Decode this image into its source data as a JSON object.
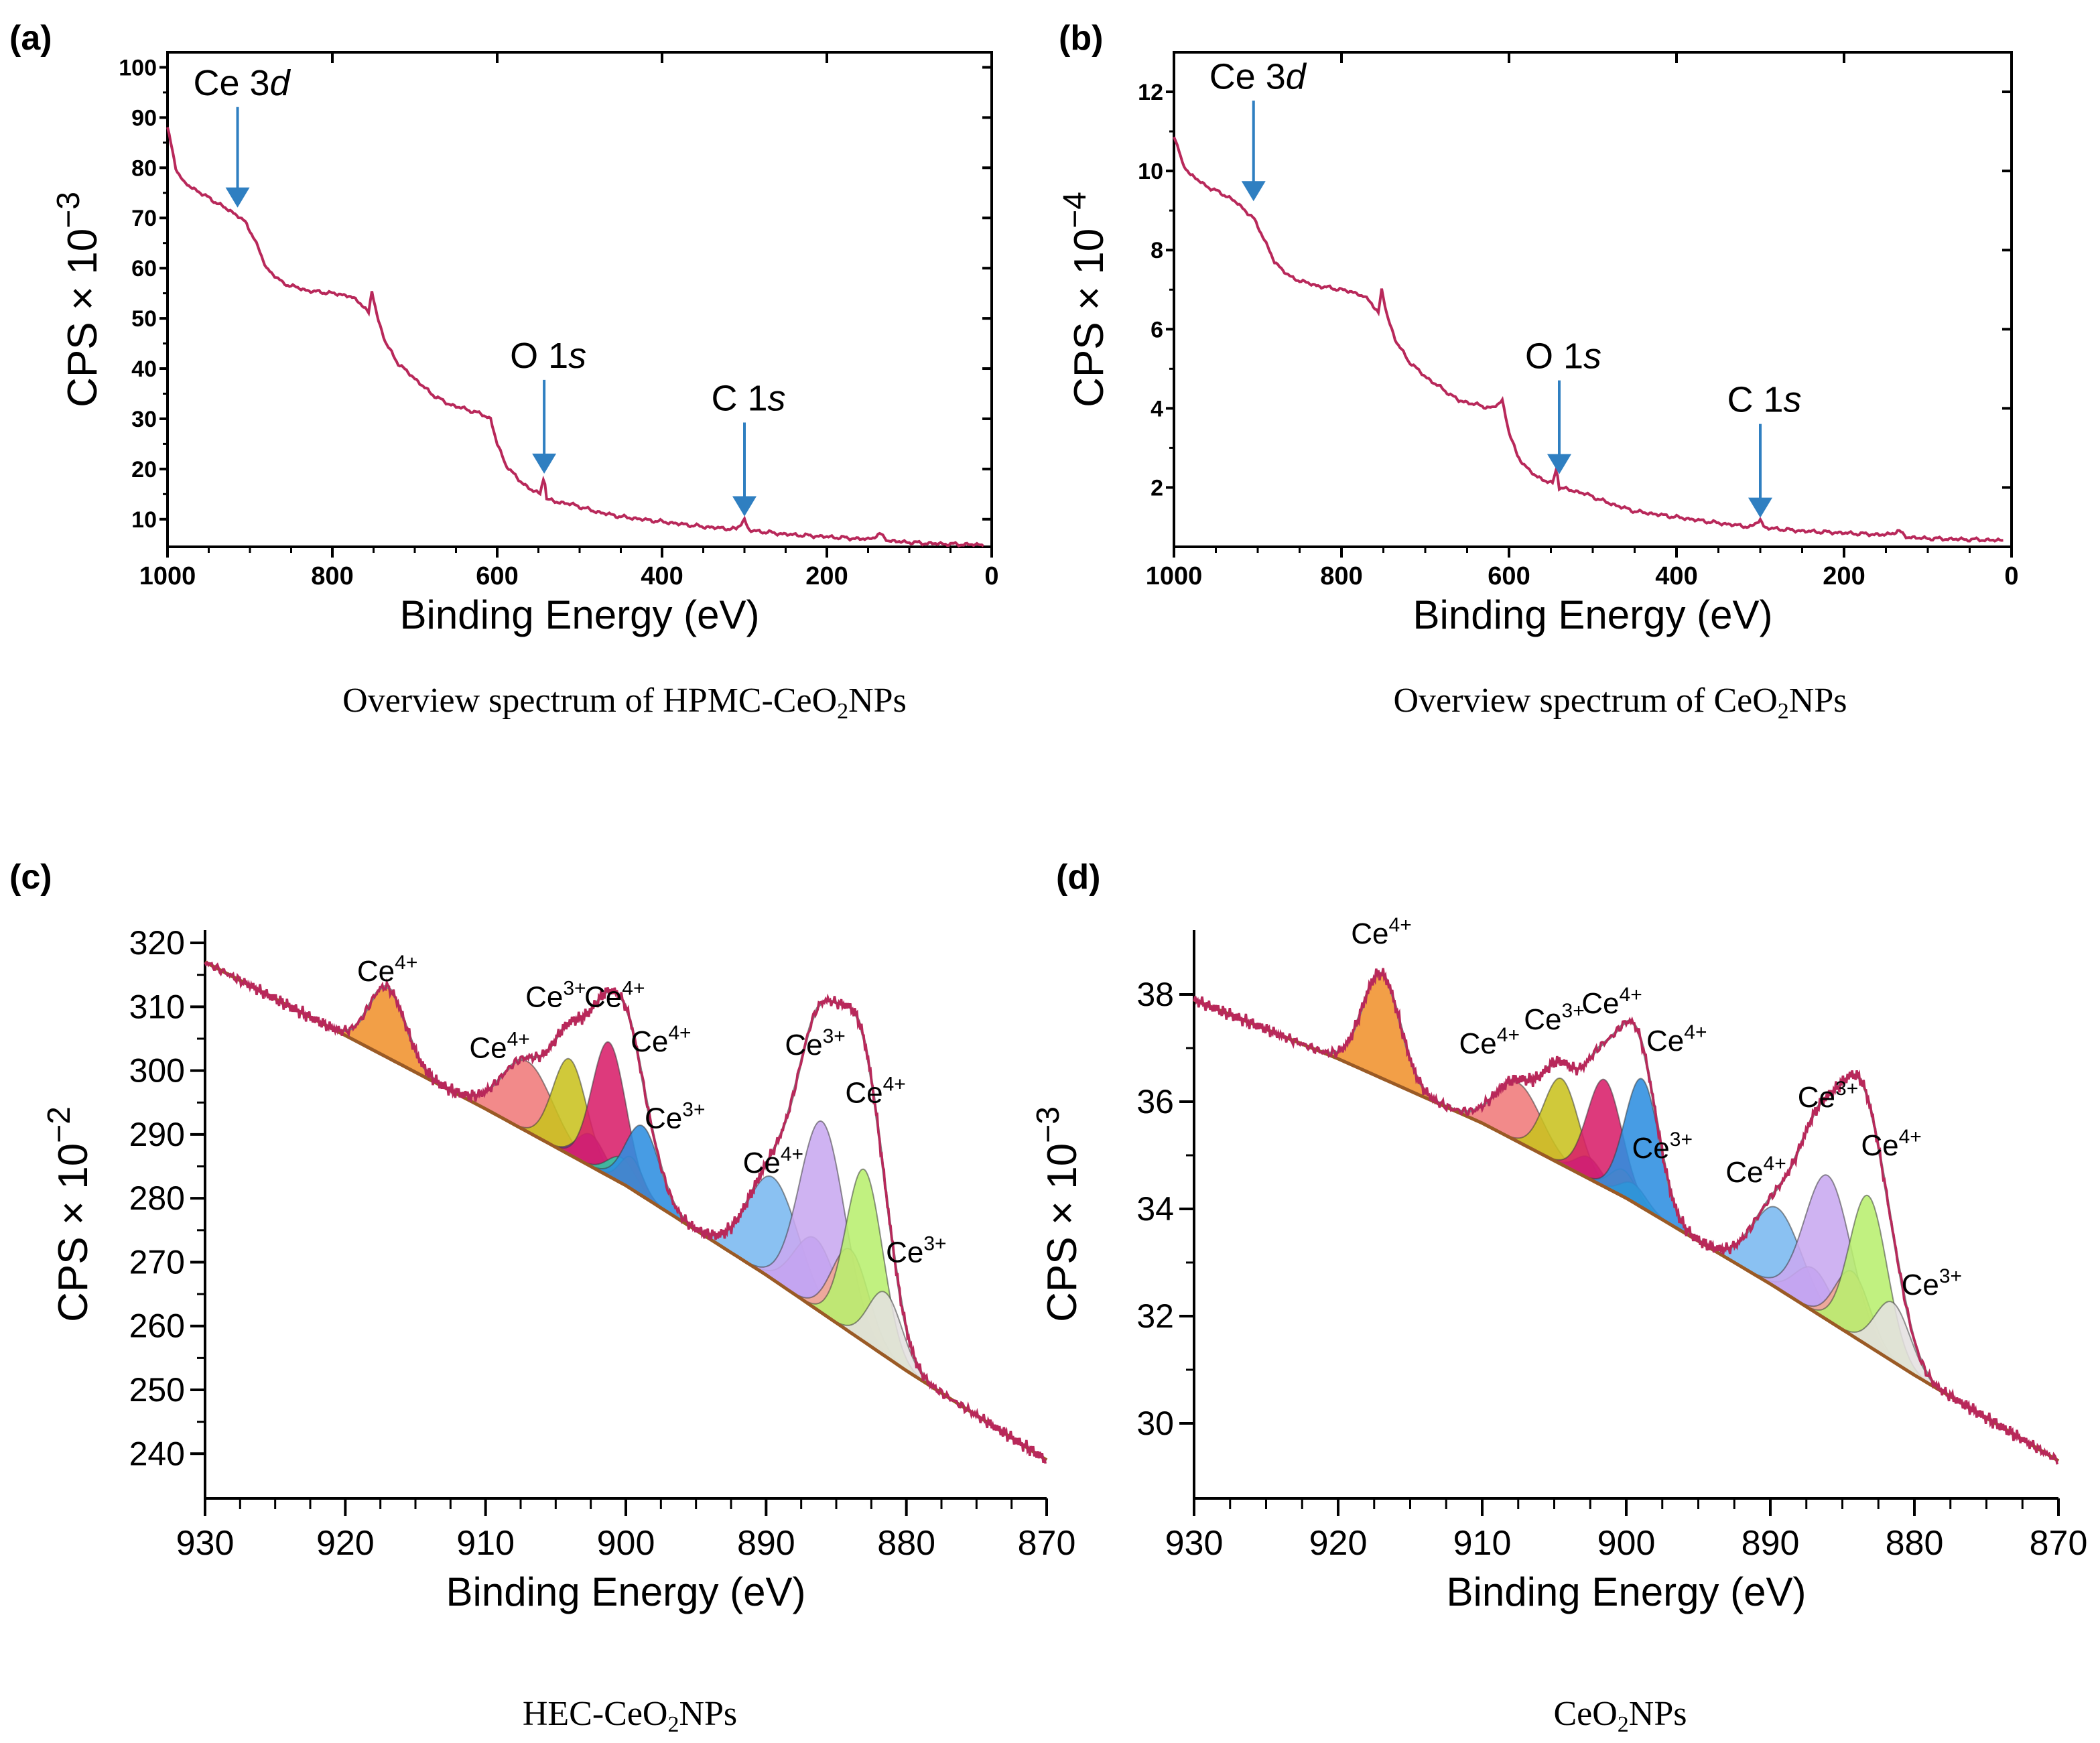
{
  "colors": {
    "trace": "#b8285a",
    "arrow": "#2f7fc1",
    "baseline": "#9a5a25",
    "envelope": "#808080",
    "axis": "#000000"
  },
  "chart_data": [
    {
      "panel": "(a)",
      "type": "line",
      "caption": "Overview spectrum of HPMC-CeO",
      "caption_sub": "2",
      "caption_tail": "NPs",
      "xlabel": "Binding Energy (eV)",
      "ylabel": "CPS × 10",
      "ylabel_exp": "−3",
      "xlim": [
        1000,
        0
      ],
      "ylim": [
        4.5,
        103
      ],
      "xticks": [
        1000,
        800,
        600,
        400,
        200,
        0
      ],
      "yticks": [
        10,
        20,
        30,
        40,
        50,
        60,
        70,
        80,
        90,
        100
      ],
      "series": [
        {
          "x": [
            1000,
            990,
            980,
            960,
            940,
            925,
            915,
            905,
            895,
            880,
            860,
            830,
            800,
            780,
            765,
            756,
            752,
            745,
            735,
            720,
            700,
            680,
            660,
            640,
            620,
            608,
            600,
            590,
            575,
            560,
            548,
            543,
            540,
            530,
            510,
            480,
            450,
            400,
            350,
            310,
            300,
            295,
            250,
            200,
            150,
            135,
            125,
            110,
            80,
            40,
            10
          ],
          "y": [
            88,
            80,
            77,
            75,
            73,
            71.5,
            70.5,
            69,
            66,
            60,
            57,
            55.5,
            55,
            54.5,
            53,
            51,
            55.5,
            50,
            45,
            41,
            38,
            35,
            33,
            32,
            31,
            30,
            25,
            21,
            18,
            16,
            15,
            19,
            14,
            13.5,
            13,
            11.5,
            10.5,
            9.5,
            8.5,
            8,
            10,
            7.8,
            7,
            6.5,
            6,
            7,
            5.7,
            5.5,
            5.2,
            5,
            4.9
          ]
        }
      ],
      "annotations": [
        {
          "label": "Ce 3",
          "italic": "d",
          "x": 915,
          "y": 71
        },
        {
          "label": "O 1",
          "italic": "s",
          "x": 543,
          "y": 18
        },
        {
          "label": "C 1",
          "italic": "s",
          "x": 300,
          "y": 9.5
        }
      ]
    },
    {
      "panel": "(b)",
      "type": "line",
      "caption": "Overview spectrum of CeO",
      "caption_sub": "2",
      "caption_tail": "NPs",
      "xlabel": "Binding Energy (eV)",
      "ylabel": "CPS × 10",
      "ylabel_exp": "−4",
      "xlim": [
        1000,
        0
      ],
      "ylim": [
        0.5,
        13
      ],
      "xticks": [
        1000,
        800,
        600,
        400,
        200,
        0
      ],
      "yticks": [
        2,
        4,
        6,
        8,
        10,
        12
      ],
      "series": [
        {
          "x": [
            1000,
            990,
            980,
            960,
            940,
            925,
            915,
            905,
            895,
            880,
            860,
            830,
            800,
            780,
            765,
            756,
            752,
            745,
            735,
            720,
            700,
            680,
            660,
            640,
            620,
            608,
            600,
            590,
            575,
            560,
            548,
            543,
            540,
            530,
            510,
            480,
            450,
            400,
            350,
            310,
            300,
            295,
            250,
            200,
            150,
            135,
            125,
            110,
            80,
            40,
            10
          ],
          "y": [
            10.9,
            10.2,
            9.9,
            9.6,
            9.4,
            9.2,
            9.0,
            8.8,
            8.4,
            7.7,
            7.3,
            7.1,
            7.0,
            6.9,
            6.7,
            6.4,
            7.0,
            6.3,
            5.7,
            5.2,
            4.8,
            4.5,
            4.2,
            4.1,
            4.0,
            4.2,
            3.4,
            2.8,
            2.4,
            2.2,
            2.1,
            2.5,
            2.0,
            1.95,
            1.85,
            1.6,
            1.4,
            1.25,
            1.1,
            1.0,
            1.2,
            0.98,
            0.9,
            0.85,
            0.8,
            0.9,
            0.75,
            0.72,
            0.7,
            0.68,
            0.66
          ]
        }
      ],
      "annotations": [
        {
          "label": "Ce 3",
          "italic": "d",
          "x": 905,
          "y": 9.1
        },
        {
          "label": "O 1",
          "italic": "s",
          "x": 540,
          "y": 2.2
        },
        {
          "label": "C 1",
          "italic": "s",
          "x": 300,
          "y": 1.1
        }
      ]
    },
    {
      "panel": "(c)",
      "type": "line",
      "caption": "HEC-CeO",
      "caption_sub": "2",
      "caption_tail": "NPs",
      "xlabel": "Binding Energy (eV)",
      "ylabel": "CPS × 10",
      "ylabel_exp": "−2",
      "xlim": [
        930,
        870
      ],
      "ylim": [
        233,
        322
      ],
      "xticks": [
        930,
        920,
        910,
        900,
        890,
        880,
        870
      ],
      "yticks": [
        240,
        250,
        260,
        270,
        280,
        290,
        300,
        310,
        320
      ],
      "baseline": {
        "x": [
          930,
          920,
          910,
          900,
          890,
          880,
          870
        ],
        "y": [
          317,
          305.5,
          294,
          282,
          268,
          253,
          239
        ]
      },
      "components": [
        {
          "center": 917,
          "height": 11,
          "width": 1.3,
          "color": "#f0922e"
        },
        {
          "center": 907,
          "height": 11,
          "width": 1.8,
          "color": "#f07a7a"
        },
        {
          "center": 904,
          "height": 15,
          "width": 1.2,
          "color": "#c9c21f"
        },
        {
          "center": 902.5,
          "height": 5,
          "width": 1.0,
          "color": "#8a1fbf"
        },
        {
          "center": 901.2,
          "height": 21,
          "width": 1.2,
          "color": "#d81f6a"
        },
        {
          "center": 900.3,
          "height": 4,
          "width": 1.0,
          "color": "#2ec9a5"
        },
        {
          "center": 899.6,
          "height": 5,
          "width": 0.8,
          "color": "#f23c3c"
        },
        {
          "center": 898.8,
          "height": 11,
          "width": 1.2,
          "color": "#2e8ee0"
        },
        {
          "center": 889.5,
          "height": 16,
          "width": 1.8,
          "color": "#7ab8f0"
        },
        {
          "center": 886.5,
          "height": 11,
          "width": 1.5,
          "color": "#a882f0"
        },
        {
          "center": 886,
          "height": 30,
          "width": 1.6,
          "color": "#c8a8f0"
        },
        {
          "center": 884,
          "height": 13,
          "width": 1.3,
          "color": "#f2a890"
        },
        {
          "center": 883,
          "height": 27,
          "width": 1.3,
          "color": "#b8ef6e"
        },
        {
          "center": 881.5,
          "height": 10,
          "width": 1.2,
          "color": "#e4e0e0"
        }
      ],
      "labels": [
        {
          "text": "Ce",
          "sup": "4+",
          "x": 917,
          "y": 314
        },
        {
          "text": "Ce",
          "sup": "4+",
          "x": 909,
          "y": 302
        },
        {
          "text": "Ce",
          "sup": "3+",
          "x": 905,
          "y": 310
        },
        {
          "text": "Ce",
          "sup": "4+",
          "x": 900.8,
          "y": 310
        },
        {
          "text": "Ce",
          "sup": "4+",
          "x": 897.5,
          "y": 303
        },
        {
          "text": "Ce",
          "sup": "3+",
          "x": 896.5,
          "y": 291
        },
        {
          "text": "Ce",
          "sup": "4+",
          "x": 889.5,
          "y": 284
        },
        {
          "text": "Ce",
          "sup": "3+",
          "x": 886.5,
          "y": 302.5
        },
        {
          "text": "Ce",
          "sup": "4+",
          "x": 882.2,
          "y": 295
        },
        {
          "text": "Ce",
          "sup": "3+",
          "x": 879.3,
          "y": 270
        }
      ]
    },
    {
      "panel": "(d)",
      "type": "line",
      "caption": "CeO",
      "caption_sub": "2",
      "caption_tail": "NPs",
      "xlabel": "Binding Energy (eV)",
      "ylabel": "CPS × 10",
      "ylabel_exp": "−3",
      "xlim": [
        930,
        870
      ],
      "ylim": [
        28.6,
        39.2
      ],
      "xticks": [
        930,
        920,
        910,
        900,
        890,
        880,
        870
      ],
      "yticks": [
        30,
        32,
        34,
        36,
        38
      ],
      "baseline": {
        "x": [
          930,
          920,
          910,
          900,
          890,
          880,
          870
        ],
        "y": [
          37.9,
          36.8,
          35.6,
          34.2,
          32.6,
          30.9,
          29.3
        ]
      },
      "components": [
        {
          "center": 917,
          "height": 1.95,
          "width": 1.3,
          "color": "#f0922e"
        },
        {
          "center": 907.5,
          "height": 1.1,
          "width": 1.6,
          "color": "#f07a7a"
        },
        {
          "center": 904.5,
          "height": 1.6,
          "width": 1.2,
          "color": "#c9c21f"
        },
        {
          "center": 902.6,
          "height": 0.4,
          "width": 0.9,
          "color": "#8a1fbf"
        },
        {
          "center": 901.5,
          "height": 2.0,
          "width": 1.2,
          "color": "#d81f6a"
        },
        {
          "center": 900.2,
          "height": 0.5,
          "width": 0.9,
          "color": "#f23c3c"
        },
        {
          "center": 899.5,
          "height": 0.35,
          "width": 0.9,
          "color": "#2ec9a5"
        },
        {
          "center": 898.9,
          "height": 2.4,
          "width": 1.2,
          "color": "#2e8ee0"
        },
        {
          "center": 889.5,
          "height": 1.5,
          "width": 1.7,
          "color": "#7ab8f0"
        },
        {
          "center": 887,
          "height": 0.8,
          "width": 1.3,
          "color": "#a882f0"
        },
        {
          "center": 886,
          "height": 2.7,
          "width": 1.6,
          "color": "#c8a8f0"
        },
        {
          "center": 884.3,
          "height": 1.2,
          "width": 1.2,
          "color": "#f2a890"
        },
        {
          "center": 883.2,
          "height": 2.8,
          "width": 1.3,
          "color": "#b8ef6e"
        },
        {
          "center": 881.5,
          "height": 1.1,
          "width": 1.2,
          "color": "#e4e0e0"
        }
      ],
      "labels": [
        {
          "text": "Ce",
          "sup": "4+",
          "x": 917,
          "y": 38.95
        },
        {
          "text": "Ce",
          "sup": "4+",
          "x": 909.5,
          "y": 36.9
        },
        {
          "text": "Ce",
          "sup": "3+",
          "x": 905,
          "y": 37.35
        },
        {
          "text": "Ce",
          "sup": "4+",
          "x": 901,
          "y": 37.65
        },
        {
          "text": "Ce",
          "sup": "4+",
          "x": 896.5,
          "y": 36.95
        },
        {
          "text": "Ce",
          "sup": "3+",
          "x": 897.5,
          "y": 34.95
        },
        {
          "text": "Ce",
          "sup": "4+",
          "x": 891,
          "y": 34.5
        },
        {
          "text": "Ce",
          "sup": "3+",
          "x": 886,
          "y": 35.9
        },
        {
          "text": "Ce",
          "sup": "4+",
          "x": 881.6,
          "y": 35.0
        },
        {
          "text": "Ce",
          "sup": "3+",
          "x": 878.8,
          "y": 32.4
        }
      ]
    }
  ]
}
